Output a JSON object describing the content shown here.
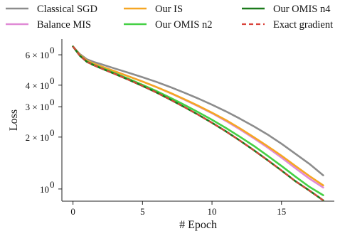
{
  "chart_data": {
    "type": "line",
    "title": "",
    "xlabel": "# Epoch",
    "ylabel": "Loss",
    "yscale": "log",
    "xlim": [
      -0.8,
      18.8
    ],
    "ylim": [
      0.85,
      7.4
    ],
    "grid": false,
    "legend_position": "top",
    "x_ticks": [
      {
        "value": 0,
        "label": "0"
      },
      {
        "value": 5,
        "label": "5"
      },
      {
        "value": 10,
        "label": "10"
      },
      {
        "value": 15,
        "label": "15"
      }
    ],
    "y_ticks": [
      {
        "value": 1,
        "base": "10",
        "exp": "0"
      },
      {
        "value": 2,
        "base": "2 × 10",
        "exp": "0"
      },
      {
        "value": 3,
        "base": "3 × 10",
        "exp": "0"
      },
      {
        "value": 4,
        "base": "4 × 10",
        "exp": "0"
      },
      {
        "value": 6,
        "base": "6 × 10",
        "exp": "0"
      }
    ],
    "x": [
      0,
      0.5,
      1,
      1.5,
      2,
      3,
      4,
      5,
      6,
      7,
      8,
      9,
      10,
      11,
      12,
      13,
      14,
      15,
      16,
      17,
      18
    ],
    "series": [
      {
        "name": "Classical SGD",
        "color": "#8c8c8c",
        "dash": "solid",
        "values": [
          6.7,
          6.05,
          5.65,
          5.45,
          5.3,
          5.0,
          4.72,
          4.45,
          4.18,
          3.9,
          3.62,
          3.35,
          3.08,
          2.82,
          2.56,
          2.31,
          2.07,
          1.83,
          1.6,
          1.4,
          1.2
        ]
      },
      {
        "name": "Balance MIS",
        "color": "#e08ad6",
        "dash": "solid",
        "values": [
          6.7,
          5.98,
          5.55,
          5.33,
          5.15,
          4.82,
          4.5,
          4.2,
          3.9,
          3.6,
          3.3,
          3.02,
          2.75,
          2.48,
          2.22,
          1.97,
          1.74,
          1.52,
          1.32,
          1.15,
          1.02
        ]
      },
      {
        "name": "Our IS",
        "color": "#f5a623",
        "dash": "solid",
        "values": [
          6.7,
          5.98,
          5.55,
          5.33,
          5.15,
          4.82,
          4.5,
          4.2,
          3.9,
          3.61,
          3.32,
          3.04,
          2.77,
          2.51,
          2.25,
          2.0,
          1.77,
          1.56,
          1.36,
          1.19,
          1.05
        ]
      },
      {
        "name": "Our OMIS n2",
        "color": "#44d044",
        "dash": "solid",
        "values": [
          6.7,
          5.92,
          5.48,
          5.25,
          5.05,
          4.7,
          4.35,
          4.02,
          3.7,
          3.38,
          3.08,
          2.79,
          2.52,
          2.26,
          2.01,
          1.78,
          1.56,
          1.36,
          1.18,
          1.03,
          0.92
        ]
      },
      {
        "name": "Our OMIS n4",
        "color": "#1b7a1b",
        "dash": "solid",
        "values": [
          6.7,
          5.92,
          5.46,
          5.22,
          5.02,
          4.65,
          4.3,
          3.96,
          3.63,
          3.3,
          2.99,
          2.7,
          2.42,
          2.16,
          1.91,
          1.68,
          1.47,
          1.28,
          1.11,
          0.98,
          0.86
        ]
      },
      {
        "name": "Exact gradient",
        "color": "#d9423a",
        "dash": "dashed",
        "values": [
          6.7,
          5.92,
          5.46,
          5.22,
          5.02,
          4.65,
          4.3,
          3.96,
          3.63,
          3.3,
          2.99,
          2.7,
          2.42,
          2.16,
          1.91,
          1.68,
          1.47,
          1.28,
          1.11,
          0.98,
          0.86
        ]
      }
    ]
  }
}
